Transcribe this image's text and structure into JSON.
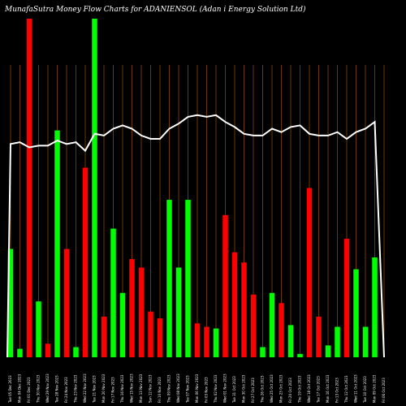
{
  "title": "MunafaSutra  Money Flow  Charts for ADANIENSOL                    (Adan                    i  Energy Solution  Ltd)",
  "colors": {
    "background": "#000000",
    "up": "#00ff00",
    "down": "#ff0000",
    "grid": "#8b4500",
    "line": "#ffffff",
    "text": "#ffffff"
  },
  "chart_data": {
    "type": "bar",
    "title": "MunafaSutra  Money Flow  Charts for ADANIENSOL                    (Adan                    i  Energy Solution  Ltd)",
    "xlabel": "",
    "ylabel": "",
    "grid": true,
    "ylim": [
      0,
      100
    ],
    "categories": [
      "Tue 05 Dec 2023",
      "Mon 04 Dec 2023",
      "Fri 01 Dec 2023",
      "Thu 30 Nov 2023",
      "Wed 29 Nov 2023",
      "Tue 28 Nov 2023",
      "Fri 24 Nov 2023",
      "Thu 23 Nov 2023",
      "Wed 22 Nov 2023",
      "Tue 21 Nov 2023",
      "Mon 20 Nov 2023",
      "Fri 17 Nov 2023",
      "Thu 16 Nov 2023",
      "Wed 15 Nov 2023",
      "Mon 13 Nov 2023",
      "Sun 12 Nov 2023",
      "Fri 10 Nov 2023",
      "Thu 09 Nov 2023",
      "Wed 08 Nov 2023",
      "Tue 07 Nov 2023",
      "Mon 06 Nov 2023",
      "Fri 03 Nov 2023",
      "Thu 02 Nov 2023",
      "Wed 01 Nov 2023",
      "Tue 31 Oct 2023",
      "Mon 30 Oct 2023",
      "Fri 27 Oct 2023",
      "Thu 26 Oct 2023",
      "Wed 25 Oct 2023",
      "Mon 23 Oct 2023",
      "Fri 20 Oct 2023",
      "Thu 19 Oct 2023",
      "Wed 18 Oct 2023",
      "Tue 17 Oct 2023",
      "Mon 16 Oct 2023",
      "Fri 13 Oct 2023",
      "Thu 12 Oct 2023",
      "Wed 11 Oct 2023",
      "Tue 10 Oct 2023",
      "Mon 09 Oct 2023",
      "Fri 06 Oct 2023"
    ],
    "series": [
      {
        "type": "bar",
        "values": [
          32,
          2.5,
          100,
          16.5,
          4,
          67,
          32,
          3,
          56,
          100,
          12,
          38,
          19,
          29,
          26.5,
          13.5,
          11.5,
          46.5,
          26.5,
          46.5,
          10,
          9,
          8.5,
          42,
          31,
          28,
          18.5,
          3,
          19,
          16,
          9.5,
          1,
          50,
          12,
          3.5,
          9,
          35,
          26,
          9,
          29.5,
          0
        ],
        "colors": [
          "up",
          "up",
          "down",
          "up",
          "down",
          "up",
          "down",
          "up",
          "down",
          "up",
          "down",
          "up",
          "up",
          "down",
          "down",
          "down",
          "down",
          "up",
          "up",
          "up",
          "down",
          "down",
          "up",
          "down",
          "down",
          "down",
          "down",
          "up",
          "up",
          "down",
          "up",
          "up",
          "down",
          "down",
          "up",
          "up",
          "down",
          "up",
          "up",
          "up",
          "up"
        ]
      },
      {
        "type": "line",
        "values": [
          63,
          63.5,
          62,
          62.5,
          62.5,
          64,
          63,
          63.5,
          61,
          66,
          65.5,
          67.5,
          68.5,
          67.5,
          65.5,
          64.5,
          64.5,
          67.5,
          69,
          71,
          71.5,
          71,
          71.5,
          69.5,
          68,
          66,
          65.5,
          65.5,
          67.5,
          66.5,
          68,
          68.5,
          66,
          65.5,
          65.5,
          66.5,
          64.5,
          66.5,
          67.5,
          69.5,
          0
        ]
      }
    ]
  }
}
